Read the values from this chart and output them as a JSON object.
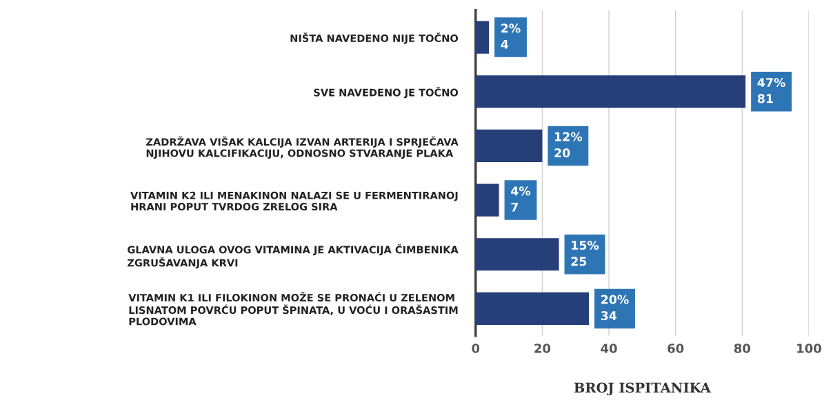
{
  "chart_data": {
    "type": "bar",
    "orientation": "horizontal",
    "xlabel": "BROJ ISPITANIKA",
    "categories": [
      "NIŠTA NAVEDENO NIJE TOČNO",
      "SVE NAVEDENO JE TOČNO",
      "ZADRŽAVA VIŠAK KALCIJA IZVAN ARTERIJA I SPRJEČAVA\nNJIHOVU KALCIFIKACIJU, ODNOSNO STVARANJE PLAKA",
      "VITAMIN K2 ILI MENAKINON NALAZI SE U FERMENTIRANOJ\nHRANI POPUT TVRDOG ZRELOG SIRA",
      "GLAVNA ULOGA OVOG VITAMINA JE AKTIVACIJA ČIMBENIKA\nZGRUŠAVANJA KRVI",
      "VITAMIN K1 ILI FILOKINON MOŽE SE PRONAĆI U ZELENOM\nLISNATOM POVRĆU POPUT ŠPINATA, U VOĆU I ORAŠASTIM\nPLODOVIMA"
    ],
    "values": [
      4,
      81,
      20,
      7,
      25,
      34
    ],
    "value_labels": [
      "2%\n4",
      "47%\n81",
      "12%\n20",
      "4%\n7",
      "15%\n25",
      "20%\n34"
    ],
    "color": "#263f78",
    "xlim": [
      0,
      100
    ],
    "xticks": [
      0,
      20,
      40,
      60,
      80,
      100
    ],
    "grid": "x"
  }
}
